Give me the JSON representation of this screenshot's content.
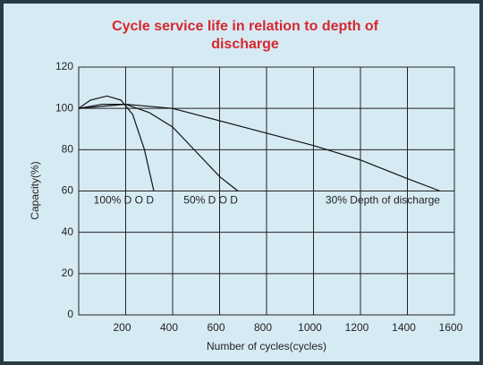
{
  "chart_data": {
    "type": "line",
    "title": "Cycle service life in relation to depth of discharge",
    "x_label": "Number of cycles(cycles)",
    "y_label": "Capacity(%)",
    "xlim": [
      0,
      1600
    ],
    "xticks": [
      200,
      400,
      600,
      800,
      1000,
      1200,
      1400,
      1600
    ],
    "ylim": [
      0,
      120
    ],
    "yticks": [
      0,
      20,
      40,
      60,
      80,
      100,
      120
    ],
    "grid": true,
    "series": [
      {
        "name": "100% D O D",
        "color": "#111111",
        "x": [
          0,
          50,
          120,
          180,
          230,
          280,
          320
        ],
        "values": [
          100,
          104,
          106,
          104,
          97,
          80,
          60
        ]
      },
      {
        "name": "50% D O D",
        "color": "#111111",
        "x": [
          0,
          100,
          200,
          300,
          400,
          500,
          600,
          678
        ],
        "values": [
          100,
          102,
          102,
          98,
          91,
          79,
          67,
          60
        ]
      },
      {
        "name": "30% Depth of discharge",
        "color": "#111111",
        "x": [
          0,
          200,
          400,
          700,
          1000,
          1200,
          1400,
          1539
        ],
        "values": [
          100,
          102,
          100,
          91,
          82,
          75,
          66,
          60
        ]
      }
    ]
  }
}
